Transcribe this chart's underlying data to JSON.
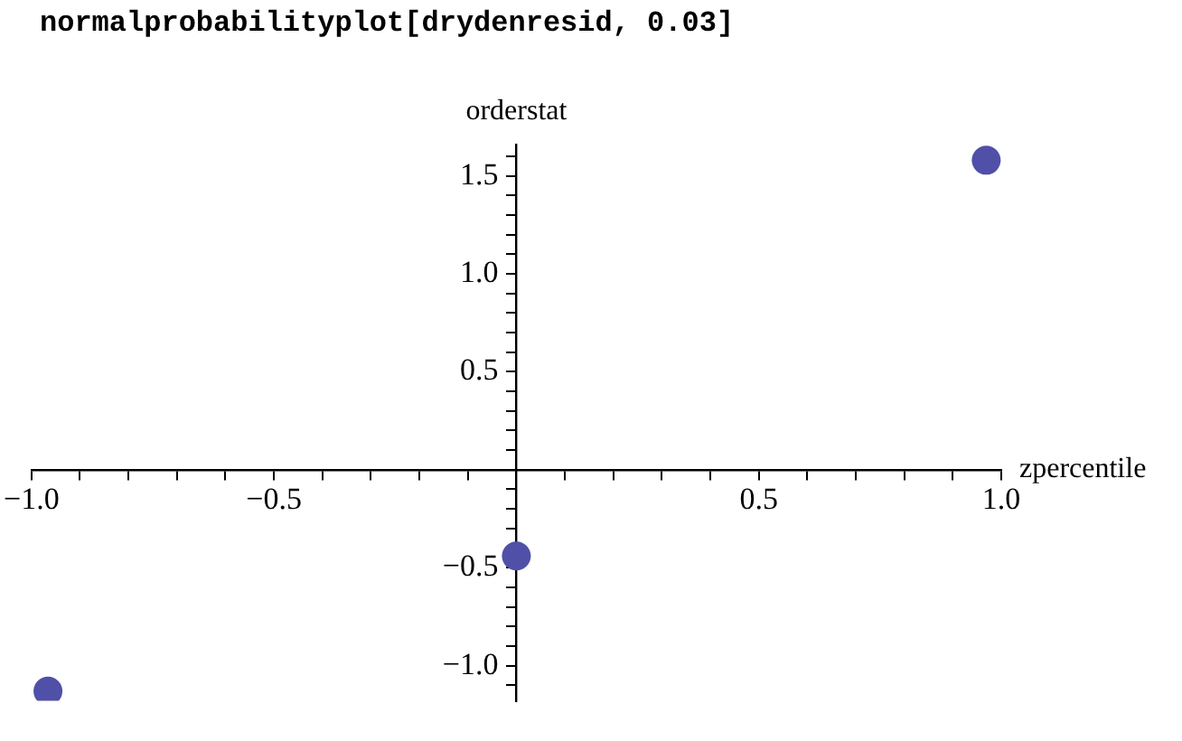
{
  "chart_data": {
    "type": "scatter",
    "title": "normalprobabilityplot[drydenresid, 0.03]",
    "xlabel": "zpercentile",
    "ylabel": "orderstat",
    "x": [
      -0.966,
      0,
      0.969
    ],
    "series": [
      {
        "color": "#5050a8",
        "values": [
          -1.13,
          -0.44,
          1.58
        ]
      }
    ],
    "xlim": [
      -1,
      1
    ],
    "ylim": [
      -1.18,
      1.66
    ],
    "marker": "circle",
    "grid": false,
    "legend": false,
    "xticks": [
      {
        "value": -1,
        "label": "−1.0"
      },
      {
        "value": -0.9,
        "label": null
      },
      {
        "value": -0.8,
        "label": null
      },
      {
        "value": -0.7,
        "label": null
      },
      {
        "value": -0.6,
        "label": null
      },
      {
        "value": -0.5,
        "label": "−0.5"
      },
      {
        "value": -0.4,
        "label": null
      },
      {
        "value": -0.3,
        "label": null
      },
      {
        "value": -0.2,
        "label": null
      },
      {
        "value": -0.1,
        "label": null
      },
      {
        "value": 0.1,
        "label": null
      },
      {
        "value": 0.2,
        "label": null
      },
      {
        "value": 0.3,
        "label": null
      },
      {
        "value": 0.4,
        "label": null
      },
      {
        "value": 0.5,
        "label": "0.5"
      },
      {
        "value": 0.6,
        "label": null
      },
      {
        "value": 0.7,
        "label": null
      },
      {
        "value": 0.8,
        "label": null
      },
      {
        "value": 0.9,
        "label": null
      },
      {
        "value": 1,
        "label": "1.0"
      }
    ],
    "yticks": [
      {
        "value": -1.1,
        "label": null
      },
      {
        "value": -1,
        "label": "−1.0"
      },
      {
        "value": -0.9,
        "label": null
      },
      {
        "value": -0.8,
        "label": null
      },
      {
        "value": -0.7,
        "label": null
      },
      {
        "value": -0.6,
        "label": null
      },
      {
        "value": -0.5,
        "label": "−0.5"
      },
      {
        "value": -0.4,
        "label": null
      },
      {
        "value": -0.3,
        "label": null
      },
      {
        "value": -0.2,
        "label": null
      },
      {
        "value": -0.1,
        "label": null
      },
      {
        "value": 0.1,
        "label": null
      },
      {
        "value": 0.2,
        "label": null
      },
      {
        "value": 0.3,
        "label": null
      },
      {
        "value": 0.4,
        "label": null
      },
      {
        "value": 0.5,
        "label": "0.5"
      },
      {
        "value": 0.6,
        "label": null
      },
      {
        "value": 0.7,
        "label": null
      },
      {
        "value": 0.8,
        "label": null
      },
      {
        "value": 0.9,
        "label": null
      },
      {
        "value": 1,
        "label": "1.0"
      },
      {
        "value": 1.1,
        "label": null
      },
      {
        "value": 1.2,
        "label": null
      },
      {
        "value": 1.3,
        "label": null
      },
      {
        "value": 1.4,
        "label": null
      },
      {
        "value": 1.5,
        "label": "1.5"
      },
      {
        "value": 1.6,
        "label": null
      }
    ]
  }
}
